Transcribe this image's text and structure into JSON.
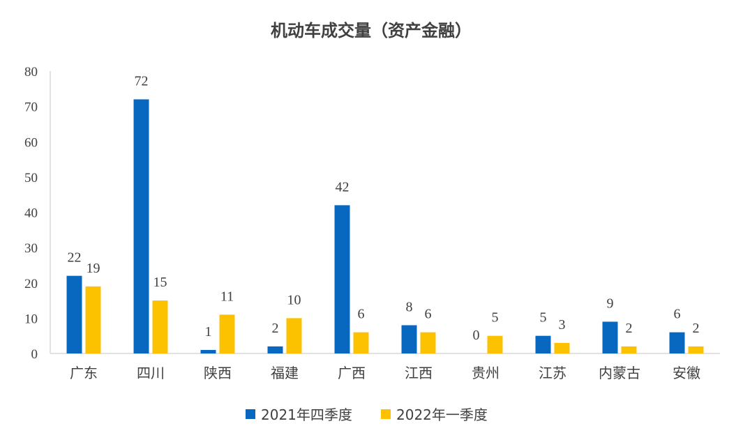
{
  "chart_data": {
    "type": "bar",
    "title": "机动车成交量（资产金融）",
    "xlabel": "",
    "ylabel": "",
    "ylim": [
      0,
      80
    ],
    "yticks": [
      0,
      10,
      20,
      30,
      40,
      50,
      60,
      70,
      80
    ],
    "categories": [
      "广东",
      "四川",
      "陕西",
      "福建",
      "广西",
      "江西",
      "贵州",
      "江苏",
      "内蒙古",
      "安徽"
    ],
    "series": [
      {
        "name": "2021年四季度",
        "color": "#0868c0",
        "values": [
          22,
          72,
          1,
          2,
          42,
          8,
          0,
          5,
          9,
          6
        ]
      },
      {
        "name": "2022年一季度",
        "color": "#fcc200",
        "values": [
          19,
          15,
          11,
          10,
          6,
          6,
          5,
          3,
          2,
          2
        ]
      }
    ],
    "grid": false,
    "legend_position": "bottom"
  }
}
